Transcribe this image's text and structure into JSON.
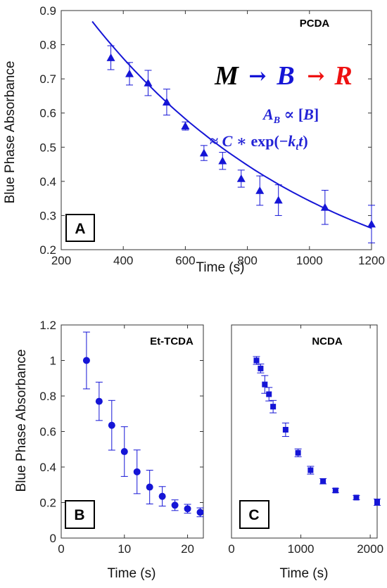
{
  "figure": {
    "colors": {
      "data": "#1515d6",
      "axis": "#333333",
      "arrow_red": "#ee1111",
      "black": "#000000"
    },
    "equation": {
      "m": "M",
      "b": "B",
      "r": "R",
      "arrow": "→",
      "line1": "A",
      "line1_sub": "B",
      "line1_rest": " ∝ [",
      "line1_b": "B",
      "line1_close": "]",
      "line2_pre": "≈ ",
      "line2_c": "C",
      "line2_mid": " ∗ exp(−",
      "line2_k": "k",
      "line2_sub": "t",
      "line2_t": "t",
      "line2_close": ")"
    }
  },
  "chart_data": [
    {
      "type": "scatter",
      "panel_label": "A",
      "series_label": "PCDA",
      "xlabel": "Time (s)",
      "ylabel": "Blue Phase Absorbance",
      "xlim": [
        200,
        1200
      ],
      "ylim": [
        0.2,
        0.9
      ],
      "xticks": [
        200,
        400,
        600,
        800,
        1000,
        1200
      ],
      "yticks": [
        0.2,
        0.3,
        0.4,
        0.5,
        0.6,
        0.7,
        0.8,
        0.9
      ],
      "marker": "triangle",
      "series": [
        {
          "x": [
            360,
            420,
            480,
            540,
            600,
            660,
            720,
            780,
            840,
            900,
            1050,
            1200
          ],
          "y": [
            0.762,
            0.715,
            0.688,
            0.632,
            0.562,
            0.483,
            0.46,
            0.408,
            0.373,
            0.345,
            0.324,
            0.275
          ],
          "err": [
            0.035,
            0.033,
            0.037,
            0.038,
            0.012,
            0.022,
            0.025,
            0.025,
            0.043,
            0.045,
            0.05,
            0.055
          ]
        }
      ],
      "fit": {
        "type": "exponential",
        "x_range": [
          300,
          1200
        ],
        "y_start": 0.868,
        "y_end": 0.263
      }
    },
    {
      "type": "scatter",
      "panel_label": "B",
      "series_label": "Et-TCDA",
      "xlabel": "Time (s)",
      "ylabel": "Blue Phase Absorbance",
      "xlim": [
        0,
        22.5
      ],
      "ylim": [
        0,
        1.2
      ],
      "xticks": [
        0,
        10,
        20
      ],
      "yticks": [
        0,
        0.2,
        0.4,
        0.6,
        0.8,
        1,
        1.2
      ],
      "ytick_labels": [
        "0",
        "0.2",
        "0.4",
        "0.6",
        "0.8",
        "1",
        "1.2"
      ],
      "marker": "circle",
      "series": [
        {
          "x": [
            4,
            6,
            8,
            10,
            12,
            14,
            16,
            18,
            20,
            22
          ],
          "y": [
            1.0,
            0.77,
            0.635,
            0.487,
            0.373,
            0.287,
            0.235,
            0.185,
            0.165,
            0.145
          ],
          "err": [
            0.16,
            0.108,
            0.14,
            0.14,
            0.123,
            0.095,
            0.055,
            0.03,
            0.025,
            0.025
          ]
        }
      ]
    },
    {
      "type": "scatter",
      "panel_label": "C",
      "series_label": "NCDA",
      "xlabel": "Time (s)",
      "xlim": [
        0,
        2100
      ],
      "ylim": [
        0,
        1.2
      ],
      "xticks": [
        0,
        1000,
        2000
      ],
      "marker": "square",
      "series": [
        {
          "x": [
            360,
            420,
            480,
            540,
            600,
            780,
            960,
            1140,
            1320,
            1500,
            1800,
            2100
          ],
          "y": [
            1.0,
            0.955,
            0.865,
            0.81,
            0.74,
            0.61,
            0.48,
            0.382,
            0.32,
            0.268,
            0.228,
            0.202
          ],
          "err": [
            0.022,
            0.025,
            0.05,
            0.038,
            0.035,
            0.038,
            0.022,
            0.022,
            0.015,
            0.012,
            0.012,
            0.018
          ]
        }
      ]
    }
  ]
}
